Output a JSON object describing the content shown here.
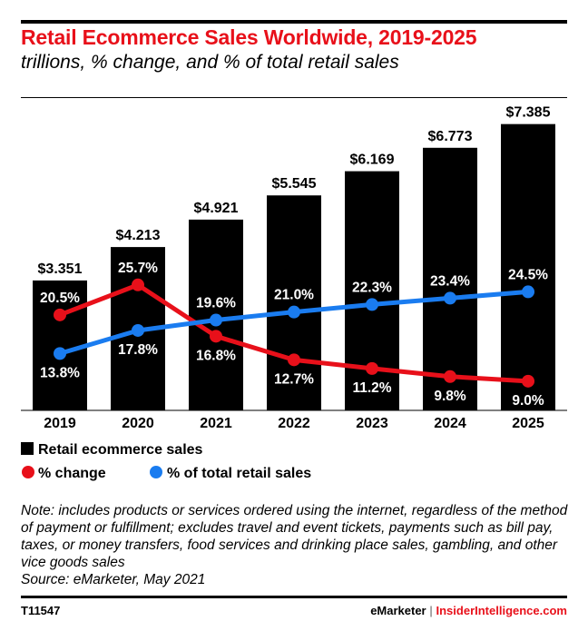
{
  "chart_data": {
    "type": "bar",
    "title": "Retail Ecommerce Sales Worldwide, 2019-2025",
    "subtitle": "trillions, % change, and % of total retail sales",
    "categories": [
      "2019",
      "2020",
      "2021",
      "2022",
      "2023",
      "2024",
      "2025"
    ],
    "series": [
      {
        "name": "Retail ecommerce sales",
        "type": "bar",
        "color": "#000000",
        "values": [
          3.351,
          4.213,
          4.921,
          5.545,
          6.169,
          6.773,
          7.385
        ],
        "labels": [
          "$3.351",
          "$4.213",
          "$4.921",
          "$5.545",
          "$6.169",
          "$6.773",
          "$7.385"
        ]
      },
      {
        "name": "% change",
        "type": "line",
        "color": "#e8101a",
        "values": [
          20.5,
          25.7,
          16.8,
          12.7,
          11.2,
          9.8,
          9.0
        ],
        "labels": [
          "20.5%",
          "25.7%",
          "16.8%",
          "12.7%",
          "11.2%",
          "9.8%",
          "9.0%"
        ]
      },
      {
        "name": "% of total retail sales",
        "type": "line",
        "color": "#1a7cf0",
        "values": [
          13.8,
          17.8,
          19.6,
          21.0,
          22.3,
          23.4,
          24.5
        ],
        "labels": [
          "13.8%",
          "17.8%",
          "19.6%",
          "21.0%",
          "22.3%",
          "23.4%",
          "24.5%"
        ]
      }
    ],
    "legend_placement": "bottom-left",
    "grid": false
  },
  "note": "Note: includes products or services ordered using the internet, regardless of the method of payment or fulfillment; excludes travel and event tickets, payments such as bill pay, taxes, or money transfers, food services and drinking place sales, gambling, and other vice goods sales",
  "source": "Source: eMarketer, May 2021",
  "chart_id": "T11547",
  "brand": {
    "left": "eMarketer",
    "sep": " | ",
    "right": "InsiderIntelligence.com"
  }
}
